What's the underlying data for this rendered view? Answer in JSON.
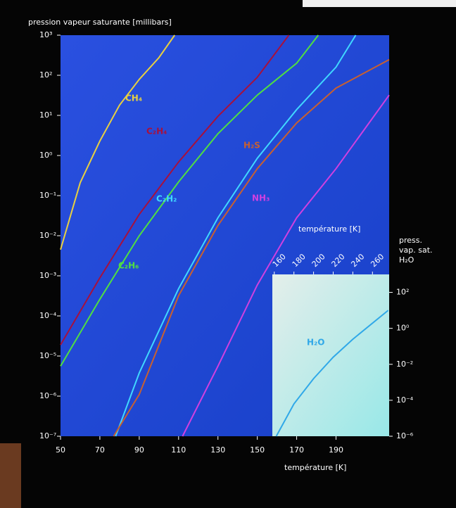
{
  "chart_data": [
    {
      "type": "line",
      "log_scale": true,
      "ylabel": "pression vapeur saturante [millibars]",
      "xlabel": "température [K]",
      "xlim": [
        50,
        217
      ],
      "xticks": [
        50,
        70,
        90,
        110,
        130,
        150,
        170,
        190
      ],
      "ylim": [
        1e-07,
        1000
      ],
      "yticks": [
        {
          "value": 1000,
          "label": "10³"
        },
        {
          "value": 100,
          "label": "10²"
        },
        {
          "value": 10,
          "label": "10¹"
        },
        {
          "value": 1,
          "label": "10⁰"
        },
        {
          "value": 0.1,
          "label": "10⁻¹"
        },
        {
          "value": 0.01,
          "label": "10⁻²"
        },
        {
          "value": 0.001,
          "label": "10⁻³"
        },
        {
          "value": 0.0001,
          "label": "10⁻⁴"
        },
        {
          "value": 1e-05,
          "label": "10⁻⁵"
        },
        {
          "value": 1e-06,
          "label": "10⁻⁶"
        },
        {
          "value": 1e-07,
          "label": "10⁻⁷"
        }
      ],
      "series": [
        {
          "name": "CH₄",
          "color": "#e8d040",
          "x": [
            50,
            60,
            70,
            80,
            90,
            100,
            108
          ],
          "values": [
            0.0045,
            0.21,
            2.3,
            18,
            79,
            275,
            1000
          ]
        },
        {
          "name": "C₂H₄",
          "color": "#a8103c",
          "x": [
            50,
            70,
            90,
            110,
            130,
            150,
            166
          ],
          "values": [
            1.9e-05,
            0.00089,
            0.034,
            0.69,
            9.5,
            89,
            1000
          ]
        },
        {
          "name": "C₂H₆",
          "color": "#50e040",
          "x": [
            50,
            70,
            90,
            110,
            130,
            150,
            170,
            181
          ],
          "values": [
            5.6e-06,
            0.00026,
            0.01,
            0.22,
            3.5,
            32,
            200,
            1000
          ]
        },
        {
          "name": "C₂H₂",
          "color": "#40d8ff",
          "x": [
            78,
            90,
            110,
            130,
            150,
            170,
            190,
            200
          ],
          "values": [
            1e-07,
            3.8e-06,
            0.00048,
            0.028,
            0.85,
            14,
            160,
            1000
          ]
        },
        {
          "name": "H₂S",
          "color": "#c86030",
          "x": [
            77,
            90,
            110,
            130,
            150,
            170,
            190,
            217
          ],
          "values": [
            1e-07,
            1.1e-06,
            0.00032,
            0.018,
            0.47,
            6.5,
            48,
            245
          ]
        },
        {
          "name": "NH₃",
          "color": "#d040e0",
          "x": [
            112,
            130,
            150,
            170,
            190,
            217
          ],
          "values": [
            1e-07,
            5.6e-06,
            0.00059,
            0.028,
            0.47,
            32
          ]
        }
      ]
    },
    {
      "type": "line",
      "log_scale": true,
      "ylabel": [
        "press.",
        "vap. sat.",
        "H₂O"
      ],
      "xlabel": "température [K]",
      "xlim": [
        158,
        277
      ],
      "xticks": [
        160,
        180,
        200,
        220,
        240,
        260
      ],
      "ylim": [
        1e-06,
        1000
      ],
      "yticks": [
        {
          "value": 100,
          "label": "10²"
        },
        {
          "value": 1,
          "label": "10⁰"
        },
        {
          "value": 0.01,
          "label": "10⁻²"
        },
        {
          "value": 0.0001,
          "label": "10⁻⁴"
        },
        {
          "value": 1e-06,
          "label": "10⁻⁶"
        }
      ],
      "series": [
        {
          "name": "H₂O",
          "color": "#30a8e8",
          "x": [
            162,
            180,
            200,
            220,
            240,
            276
          ],
          "values": [
            1e-06,
            6.3e-05,
            0.0016,
            0.025,
            0.25,
            10
          ]
        }
      ]
    }
  ]
}
